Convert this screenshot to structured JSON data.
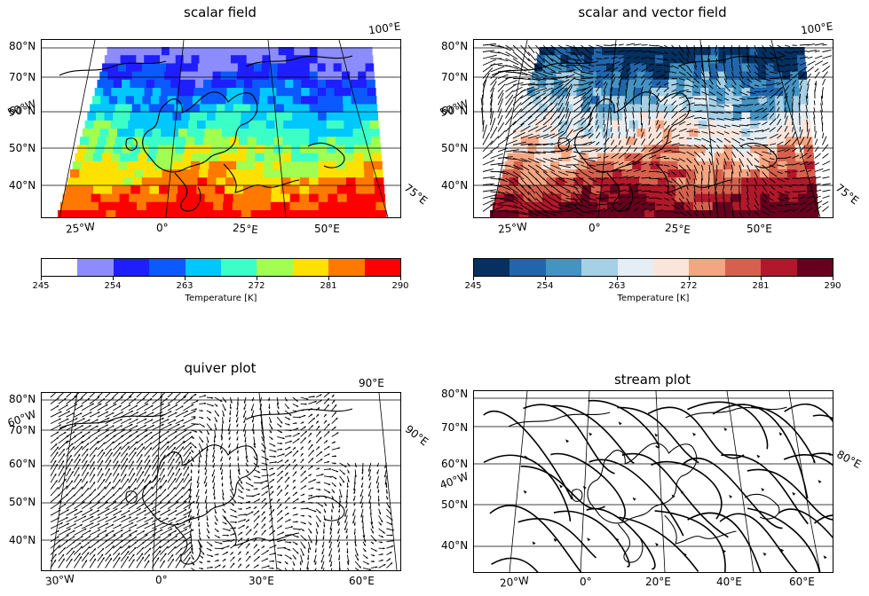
{
  "panels": [
    {
      "id": "scalar",
      "title": "scalar field",
      "lat_labels": [
        "80°N",
        "70°N",
        "60°N",
        "50°N",
        "40°N"
      ],
      "lon_labels": [
        "25°W",
        "0°",
        "25°E",
        "50°E"
      ],
      "edge_labels": [
        "100°E",
        "75°E",
        "50°N"
      ],
      "overlapped_label": "50°W"
    },
    {
      "id": "scalarvector",
      "title": "scalar and vector field",
      "lat_labels": [
        "80°N",
        "70°N",
        "60°N",
        "50°N",
        "40°N"
      ],
      "lon_labels": [
        "25°W",
        "0°",
        "25°E",
        "50°E"
      ],
      "edge_labels": [
        "100°E",
        "75°E",
        "50°N"
      ],
      "overlapped_label": "50°W"
    },
    {
      "id": "quiver",
      "title": "quiver plot",
      "lat_labels": [
        "80°N",
        "70°N",
        "60°N",
        "50°N",
        "40°N"
      ],
      "lon_labels": [
        "30°W",
        "0°",
        "30°E",
        "60°E"
      ],
      "edge_labels": [
        "90°E",
        "90°E",
        "60°W"
      ]
    },
    {
      "id": "stream",
      "title": "stream plot",
      "lat_labels": [
        "80°N",
        "70°N",
        "60°N",
        "50°N",
        "40°N"
      ],
      "lon_labels": [
        "20°W",
        "0°",
        "20°E",
        "40°E",
        "60°E"
      ],
      "edge_labels": [
        "80°E",
        "40°W"
      ]
    }
  ],
  "colorbars": [
    {
      "label": "Temperature [K]",
      "ticks": [
        "245",
        "254",
        "263",
        "272",
        "281",
        "290"
      ],
      "colors": [
        "#ffffff",
        "#8c8cff",
        "#1e1eff",
        "#0a5aff",
        "#00c8ff",
        "#3cffc8",
        "#a0ff50",
        "#ffe100",
        "#ff7800",
        "#ff0000"
      ]
    },
    {
      "label": "Temperature [K]",
      "ticks": [
        "245",
        "254",
        "263",
        "272",
        "281",
        "290"
      ],
      "colors": [
        "#053061",
        "#2166ac",
        "#4393c3",
        "#a6d0e6",
        "#e4eef4",
        "#fbe5db",
        "#f4a582",
        "#d6604d",
        "#b2182b",
        "#67001f"
      ]
    }
  ],
  "chart_data": [
    {
      "type": "heatmap",
      "title": "scalar field",
      "colorbar_label": "Temperature [K]",
      "vmin": 245,
      "vmax": 290,
      "levels": [
        245,
        249.5,
        254,
        258.5,
        263,
        267.5,
        272,
        276.5,
        281,
        285.5,
        290
      ],
      "lat_range": [
        35,
        80
      ],
      "lon_range": [
        -25,
        65
      ]
    },
    {
      "type": "heatmap",
      "title": "scalar and vector field",
      "colorbar_label": "Temperature [K]",
      "vmin": 245,
      "vmax": 290,
      "overlay": "quiver",
      "lat_range": [
        35,
        80
      ],
      "lon_range": [
        -25,
        65
      ]
    },
    {
      "type": "scatter",
      "title": "quiver plot",
      "lat_range": [
        35,
        80
      ],
      "lon_range": [
        -30,
        60
      ]
    },
    {
      "type": "line",
      "title": "stream plot",
      "lat_range": [
        35,
        80
      ],
      "lon_range": [
        -20,
        60
      ]
    }
  ]
}
